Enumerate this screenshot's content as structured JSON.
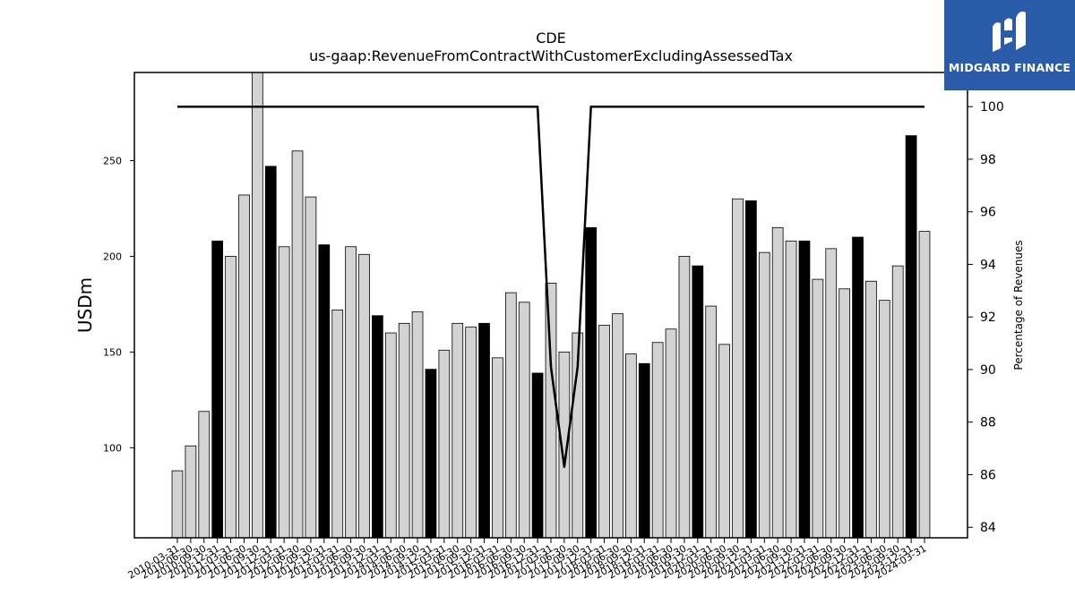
{
  "chart_data": {
    "type": "bar",
    "title": "CDE",
    "subtitle": "us-gaap:RevenueFromContractWithCustomerExcludingAssessedTax",
    "ylabel": "USDm",
    "y2label": "Percentage of Revenues",
    "ylim": [
      53,
      296
    ],
    "y2lim": [
      83.6,
      101.3
    ],
    "yticks": [
      100,
      150,
      200,
      250
    ],
    "y2ticks": [
      84,
      86,
      88,
      90,
      92,
      94,
      96,
      98,
      100
    ],
    "categories": [
      "2010-03-31",
      "2010-06-30",
      "2010-09-30",
      "2010-12-31",
      "2011-03-31",
      "2011-06-30",
      "2011-09-30",
      "2011-12-31",
      "2012-03-31",
      "2012-06-30",
      "2012-09-30",
      "2012-12-31",
      "2013-03-31",
      "2013-06-30",
      "2013-09-30",
      "2013-12-31",
      "2014-03-31",
      "2014-06-30",
      "2014-09-30",
      "2014-12-31",
      "2015-03-31",
      "2015-06-30",
      "2015-09-30",
      "2015-12-31",
      "2016-03-31",
      "2016-06-30",
      "2016-09-30",
      "2016-12-31",
      "2017-03-31",
      "2017-06-30",
      "2017-09-30",
      "2017-12-31",
      "2018-03-31",
      "2018-06-30",
      "2018-09-30",
      "2018-12-31",
      "2019-03-31",
      "2019-06-30",
      "2019-09-30",
      "2019-12-31",
      "2020-03-31",
      "2020-06-30",
      "2020-09-30",
      "2020-12-31",
      "2021-03-31",
      "2021-06-30",
      "2021-09-30",
      "2021-12-31",
      "2022-03-31",
      "2022-06-30",
      "2022-09-30",
      "2022-12-31",
      "2023-03-31",
      "2023-06-30",
      "2023-09-30",
      "2023-12-31",
      "2024-03-31"
    ],
    "series": [
      {
        "type": "bar",
        "values": [
          88,
          101,
          119,
          208,
          200,
          232,
          298,
          247,
          205,
          255,
          231,
          206,
          172,
          205,
          201,
          169,
          160,
          165,
          171,
          141,
          151,
          165,
          163,
          165,
          147,
          181,
          176,
          139,
          186,
          150,
          160,
          215,
          164,
          170,
          149,
          144,
          155,
          162,
          200,
          195,
          174,
          154,
          230,
          229,
          202,
          215,
          208,
          208,
          188,
          204,
          183,
          210,
          187,
          177,
          195,
          263,
          213
        ],
        "highlight": [
          false,
          false,
          false,
          true,
          false,
          false,
          false,
          true,
          false,
          false,
          false,
          true,
          false,
          false,
          false,
          true,
          false,
          false,
          false,
          true,
          false,
          false,
          false,
          true,
          false,
          false,
          false,
          true,
          false,
          false,
          false,
          true,
          false,
          false,
          false,
          true,
          false,
          false,
          false,
          true,
          false,
          false,
          false,
          true,
          false,
          false,
          false,
          true,
          false,
          false,
          false,
          true,
          false,
          false,
          false,
          true,
          false
        ]
      },
      {
        "type": "line",
        "axis": "right",
        "values": [
          100,
          100,
          100,
          100,
          100,
          100,
          100,
          100,
          100,
          100,
          100,
          100,
          100,
          100,
          100,
          100,
          100,
          100,
          100,
          100,
          100,
          100,
          100,
          100,
          100,
          100,
          100,
          100,
          90.1,
          86.3,
          90.1,
          100,
          100,
          100,
          100,
          100,
          100,
          100,
          100,
          100,
          100,
          100,
          100,
          100,
          100,
          100,
          100,
          100,
          100,
          100,
          100,
          100,
          100,
          100,
          100,
          100,
          100
        ]
      }
    ],
    "colors": {
      "bar": "#d3d3d3",
      "bar_highlight": "#000000",
      "line": "#000000"
    },
    "grid": false
  },
  "logo": {
    "text": "MIDGARD FINANCE",
    "color": "#2a5caa"
  }
}
